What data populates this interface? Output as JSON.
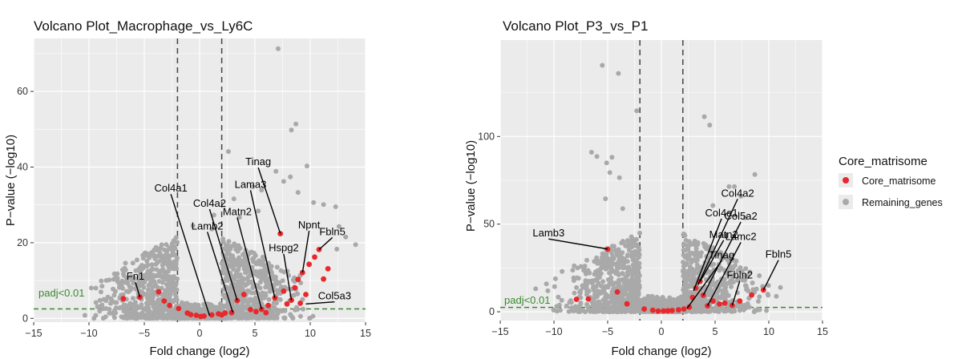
{
  "colors": {
    "core": "#e8282b",
    "remaining": "#a9a9a9",
    "panel_bg": "#ebebeb",
    "grid": "#ffffff",
    "threshold": "#3a8a2e"
  },
  "legend": {
    "title": "Core_matrisome",
    "items": [
      {
        "label": "Core_matrisome",
        "color": "#e8282b"
      },
      {
        "label": "Remaining_genes",
        "color": "#a9a9a9"
      }
    ]
  },
  "chart_data": [
    {
      "type": "scatter",
      "title": "Volcano Plot_Macrophage_vs_Ly6C",
      "xlabel": "Fold change (log2)",
      "ylabel": "P−value (−log10)",
      "xlim": [
        -15,
        15
      ],
      "ylim": [
        -1,
        74
      ],
      "xticks": [
        -15,
        -10,
        -5,
        0,
        5,
        10,
        15
      ],
      "xtick_labels": [
        "−15",
        "−10",
        "−5",
        "0",
        "5",
        "10",
        "15"
      ],
      "yticks": [
        0,
        20,
        40,
        60
      ],
      "ytick_labels": [
        "0",
        "20",
        "40",
        "60"
      ],
      "fc_thresholds": [
        -2,
        2
      ],
      "padj_y": 2.5,
      "padj_label": "padj<0.01",
      "remaining_sample": [
        [
          7.1,
          71.3
        ],
        [
          8.7,
          51.4
        ],
        [
          8.3,
          49.8
        ],
        [
          2.6,
          44.1
        ],
        [
          9.7,
          40.3
        ],
        [
          6.9,
          38.9
        ],
        [
          8.2,
          37.4
        ],
        [
          7.6,
          36.2
        ],
        [
          4.8,
          34.8
        ],
        [
          5.6,
          33.9
        ],
        [
          10.3,
          30.6
        ],
        [
          11.2,
          30.1
        ],
        [
          12.3,
          29.5
        ],
        [
          -0.6,
          24.5
        ],
        [
          1.3,
          27.3
        ],
        [
          3.6,
          26.7
        ],
        [
          -4.1,
          16.5
        ],
        [
          -6.7,
          14.6
        ],
        [
          -5.4,
          11.2
        ],
        [
          12.6,
          24.3
        ],
        [
          13.2,
          21.5
        ],
        [
          14.1,
          19.5
        ],
        [
          12.4,
          18.3
        ],
        [
          1.1,
          23.6
        ],
        [
          5.3,
          28.4
        ],
        [
          3.1,
          31.6
        ],
        [
          8.9,
          33.3
        ]
      ],
      "core": [
        [
          -6.9,
          5.2
        ],
        [
          -5.4,
          5.6
        ],
        [
          -3.7,
          7.0
        ],
        [
          -3.2,
          4.6
        ],
        [
          -2.7,
          3.4
        ],
        [
          -1.9,
          2.6
        ],
        [
          -1.1,
          1.4
        ],
        [
          -0.3,
          0.8
        ],
        [
          0.4,
          0.6
        ],
        [
          1.1,
          0.9
        ],
        [
          1.7,
          1.2
        ],
        [
          2.3,
          1.4
        ],
        [
          2.9,
          1.5
        ],
        [
          3.4,
          4.7
        ],
        [
          4.0,
          6.3
        ],
        [
          4.6,
          2.3
        ],
        [
          5.1,
          1.8
        ],
        [
          5.6,
          2.4
        ],
        [
          6.2,
          3.4
        ],
        [
          6.8,
          5.4
        ],
        [
          7.3,
          22.4
        ],
        [
          7.6,
          7.2
        ],
        [
          7.9,
          3.8
        ],
        [
          8.3,
          4.8
        ],
        [
          8.6,
          8.1
        ],
        [
          8.9,
          10.3
        ],
        [
          9.3,
          12.1
        ],
        [
          9.6,
          6.3
        ],
        [
          9.9,
          14.3
        ],
        [
          10.4,
          16.2
        ],
        [
          10.8,
          18.2
        ],
        [
          11.2,
          10.4
        ],
        [
          11.6,
          13.1
        ],
        [
          -0.8,
          1.0
        ],
        [
          0.1,
          0.5
        ],
        [
          2.0,
          0.9
        ],
        [
          6.0,
          1.5
        ],
        [
          9.1,
          4.0
        ]
      ],
      "labels": [
        {
          "text": "Tinag",
          "x": 7.3,
          "y": 22.4,
          "lx": 5.3,
          "ly": 40.5
        },
        {
          "text": "Lama3",
          "x": 6.8,
          "y": 5.4,
          "lx": 4.6,
          "ly": 34.5
        },
        {
          "text": "Col4a1",
          "x": 0.9,
          "y": 0.7,
          "lx": -2.6,
          "ly": 33.5
        },
        {
          "text": "Col4a2",
          "x": 3.4,
          "y": 4.7,
          "lx": 0.9,
          "ly": 29.5
        },
        {
          "text": "Matn2",
          "x": 5.6,
          "y": 2.4,
          "lx": 3.4,
          "ly": 27.3
        },
        {
          "text": "Lamb2",
          "x": 3.0,
          "y": 1.6,
          "lx": 0.7,
          "ly": 23.5
        },
        {
          "text": "Npnt",
          "x": 9.3,
          "y": 12.1,
          "lx": 9.9,
          "ly": 23.8
        },
        {
          "text": "Fbln5",
          "x": 10.8,
          "y": 18.2,
          "lx": 12.0,
          "ly": 22.0
        },
        {
          "text": "Hspg2",
          "x": 8.3,
          "y": 4.8,
          "lx": 7.6,
          "ly": 17.7
        },
        {
          "text": "Fn1",
          "x": -5.4,
          "y": 5.6,
          "lx": -5.8,
          "ly": 10.2
        },
        {
          "text": "Col5a3",
          "x": 9.6,
          "y": 3.8,
          "lx": 12.2,
          "ly": 5.0
        }
      ]
    },
    {
      "type": "scatter",
      "title": "Volcano Plot_P3_vs_P1",
      "xlabel": "Fold change (log2)",
      "ylabel": "P−value (−log10)",
      "xlim": [
        -15,
        15
      ],
      "ylim": [
        -5,
        155
      ],
      "xticks": [
        -15,
        -10,
        -5,
        0,
        5,
        10,
        15
      ],
      "xtick_labels": [
        "−15",
        "−10",
        "−5",
        "0",
        "5",
        "10",
        "15"
      ],
      "yticks": [
        0,
        50,
        100
      ],
      "ytick_labels": [
        "0",
        "50",
        "100"
      ],
      "fc_thresholds": [
        -2,
        2
      ],
      "padj_y": 2.5,
      "padj_label": "padj<0.01",
      "remaining_sample": [
        [
          -5.5,
          140.6
        ],
        [
          -4.0,
          136.0
        ],
        [
          -2.3,
          114.7
        ],
        [
          4.0,
          111.3
        ],
        [
          4.5,
          106.5
        ],
        [
          -6.5,
          91.0
        ],
        [
          -6.0,
          88.6
        ],
        [
          -4.6,
          88.1
        ],
        [
          -5.1,
          84.9
        ],
        [
          -4.8,
          79.4
        ],
        [
          -3.9,
          76.5
        ],
        [
          6.3,
          71.4
        ],
        [
          6.8,
          71.4
        ],
        [
          8.7,
          78.3
        ],
        [
          7.4,
          65.9
        ],
        [
          7.8,
          53.6
        ],
        [
          -10.7,
          15.9
        ],
        [
          -11.7,
          13.1
        ],
        [
          -9.6,
          8.4
        ],
        [
          9.9,
          10.1
        ],
        [
          10.7,
          8.8
        ],
        [
          -5.2,
          64.5
        ],
        [
          -3.6,
          58.8
        ],
        [
          5.9,
          43.1
        ],
        [
          4.8,
          60.6
        ]
      ],
      "core": [
        [
          -7.9,
          7.1
        ],
        [
          -6.8,
          7.3
        ],
        [
          -5.0,
          35.8
        ],
        [
          -4.1,
          11.3
        ],
        [
          -3.2,
          4.5
        ],
        [
          -1.6,
          1.6
        ],
        [
          -0.8,
          0.9
        ],
        [
          0.2,
          0.5
        ],
        [
          1.0,
          0.7
        ],
        [
          1.6,
          1.1
        ],
        [
          2.1,
          1.6
        ],
        [
          2.6,
          2.7
        ],
        [
          3.2,
          13.5
        ],
        [
          3.6,
          17.3
        ],
        [
          3.9,
          9.4
        ],
        [
          4.3,
          3.4
        ],
        [
          4.8,
          6.1
        ],
        [
          5.4,
          4.4
        ],
        [
          6.6,
          3.7
        ],
        [
          7.3,
          6.1
        ],
        [
          9.5,
          12.4
        ],
        [
          2.9,
          8.1
        ],
        [
          0.6,
          0.6
        ],
        [
          -0.3,
          0.4
        ],
        [
          5.9,
          4.9
        ],
        [
          8.4,
          9.6
        ]
      ],
      "labels": [
        {
          "text": "Col4a2",
          "x": 3.4,
          "y": 15.3,
          "lx": 7.1,
          "ly": 65.7
        },
        {
          "text": "Col4a1",
          "x": 3.0,
          "y": 12.0,
          "lx": 5.6,
          "ly": 54.5
        },
        {
          "text": "Col5a2",
          "x": 3.9,
          "y": 9.4,
          "lx": 7.4,
          "ly": 52.6
        },
        {
          "text": "Lamb3",
          "x": -5.0,
          "y": 35.8,
          "lx": -10.5,
          "ly": 42.9
        },
        {
          "text": "Matn2",
          "x": 3.6,
          "y": 17.3,
          "lx": 5.8,
          "ly": 42.2
        },
        {
          "text": "Lamc2",
          "x": 4.3,
          "y": 3.4,
          "lx": 7.4,
          "ly": 41.0
        },
        {
          "text": "Tinag",
          "x": 2.4,
          "y": 2.0,
          "lx": 5.6,
          "ly": 30.4
        },
        {
          "text": "Fbln5",
          "x": 9.5,
          "y": 12.4,
          "lx": 10.9,
          "ly": 30.8
        },
        {
          "text": "Fbln2",
          "x": 6.6,
          "y": 3.7,
          "lx": 7.3,
          "ly": 19.0
        }
      ]
    }
  ]
}
